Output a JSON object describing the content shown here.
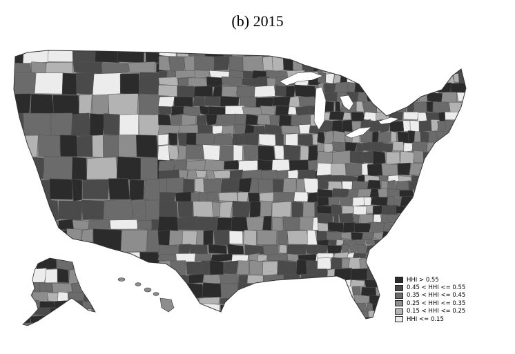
{
  "title": "(b) 2015",
  "legend": [
    {
      "label": "HHI > 0.55",
      "color": "#2b2b2b"
    },
    {
      "label": "0.45 < HHI <= 0.55",
      "color": "#4a4a4a"
    },
    {
      "label": "0.35 < HHI <= 0.45",
      "color": "#6b6b6b"
    },
    {
      "label": "0.25 < HHI <= 0.35",
      "color": "#8d8d8d"
    },
    {
      "label": "0.15 < HHI <= 0.25",
      "color": "#b3b3b3"
    },
    {
      "label": "HHI <= 0.15",
      "color": "#ececec"
    }
  ],
  "regions": [
    "conus",
    "alaska",
    "hawaii"
  ]
}
